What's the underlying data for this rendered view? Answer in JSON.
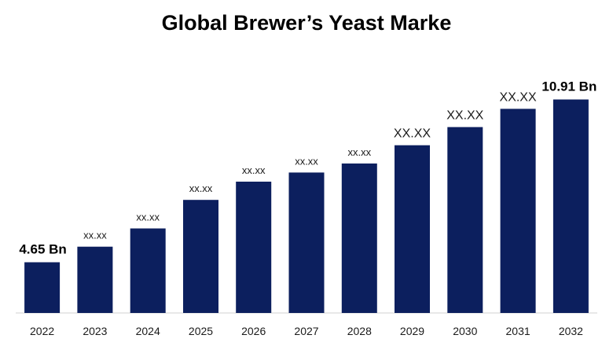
{
  "chart_data": {
    "type": "bar",
    "title": "Global Brewer’s Yeast Marke",
    "xlabel": "",
    "ylabel": "",
    "categories": [
      "2022",
      "2023",
      "2024",
      "2025",
      "2026",
      "2027",
      "2028",
      "2029",
      "2030",
      "2031",
      "2032"
    ],
    "values": [
      4.65,
      5.25,
      5.95,
      7.05,
      7.75,
      8.1,
      8.45,
      9.15,
      9.85,
      10.55,
      10.91
    ],
    "data_labels": [
      "4.65 Bn",
      "xx.xx",
      "xx.xx",
      "xx.xx",
      "xx.xx",
      "xx.xx",
      "xx.xx",
      "XX.XX",
      "XX.XX",
      "XX.XX",
      "10.91 Bn"
    ],
    "ylim": [
      2.7,
      11.5
    ],
    "grid": false,
    "legend": "none",
    "bar_color": "#0c1f5e",
    "axis_color": "#d0d0d0"
  }
}
